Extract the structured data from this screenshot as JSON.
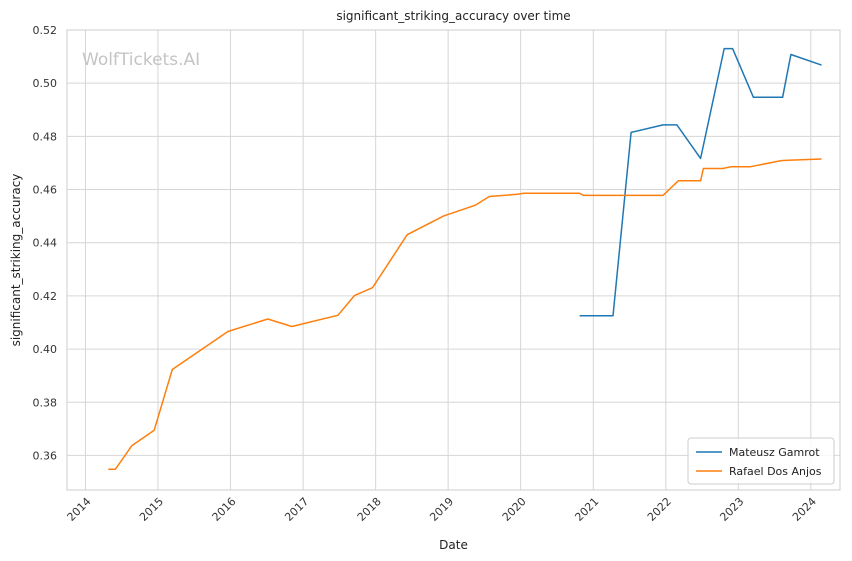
{
  "chart_data": {
    "type": "line",
    "title": "significant_striking_accuracy over time",
    "xlabel": "Date",
    "ylabel": "significant_striking_accuracy",
    "watermark": "WolfTickets.AI",
    "x_ticks": [
      "2014",
      "2015",
      "2016",
      "2017",
      "2018",
      "2019",
      "2020",
      "2021",
      "2022",
      "2023",
      "2024"
    ],
    "y_ticks": [
      "0.36",
      "0.38",
      "0.40",
      "0.42",
      "0.44",
      "0.46",
      "0.48",
      "0.50",
      "0.52"
    ],
    "xlim": [
      "2013-09-30",
      "2024-05-27"
    ],
    "ylim": [
      0.347,
      0.52
    ],
    "grid": true,
    "legend_position": "lower right",
    "series": [
      {
        "name": "Mateusz Gamrot",
        "color": "#1f77b4",
        "points": [
          [
            "2020-10-24",
            0.4125
          ],
          [
            "2021-04-10",
            0.4125
          ],
          [
            "2021-07-10",
            0.4815
          ],
          [
            "2021-12-18",
            0.4843
          ],
          [
            "2022-02-26",
            0.4843
          ],
          [
            "2022-06-25",
            0.4717
          ],
          [
            "2022-10-22",
            0.513
          ],
          [
            "2022-12-03",
            0.513
          ],
          [
            "2023-03-18",
            0.4947
          ],
          [
            "2023-08-12",
            0.4947
          ],
          [
            "2023-09-23",
            0.5108
          ],
          [
            "2024-02-24",
            0.5068
          ]
        ]
      },
      {
        "name": "Rafael Dos Anjos",
        "color": "#ff7f0e",
        "points": [
          [
            "2014-04-26",
            0.3548
          ],
          [
            "2014-05-31",
            0.3548
          ],
          [
            "2014-08-23",
            0.3637
          ],
          [
            "2014-12-13",
            0.3695
          ],
          [
            "2015-03-14",
            0.3923
          ],
          [
            "2015-12-19",
            0.4066
          ],
          [
            "2016-07-07",
            0.4113
          ],
          [
            "2016-11-05",
            0.4085
          ],
          [
            "2017-06-25",
            0.4127
          ],
          [
            "2017-09-16",
            0.4201
          ],
          [
            "2017-12-16",
            0.4231
          ],
          [
            "2018-06-09",
            0.443
          ],
          [
            "2018-12-08",
            0.45
          ],
          [
            "2019-05-18",
            0.4541
          ],
          [
            "2019-07-27",
            0.4574
          ],
          [
            "2019-12-14",
            0.4582
          ],
          [
            "2020-01-18",
            0.4586
          ],
          [
            "2020-10-24",
            0.4586
          ],
          [
            "2020-11-14",
            0.4578
          ],
          [
            "2021-12-18",
            0.4578
          ],
          [
            "2022-03-05",
            0.4633
          ],
          [
            "2022-06-25",
            0.4633
          ],
          [
            "2022-07-09",
            0.4679
          ],
          [
            "2022-10-15",
            0.4679
          ],
          [
            "2022-11-26",
            0.4686
          ],
          [
            "2023-03-04",
            0.4686
          ],
          [
            "2023-08-05",
            0.4709
          ],
          [
            "2023-09-09",
            0.471
          ],
          [
            "2024-02-24",
            0.4715
          ]
        ]
      }
    ]
  }
}
